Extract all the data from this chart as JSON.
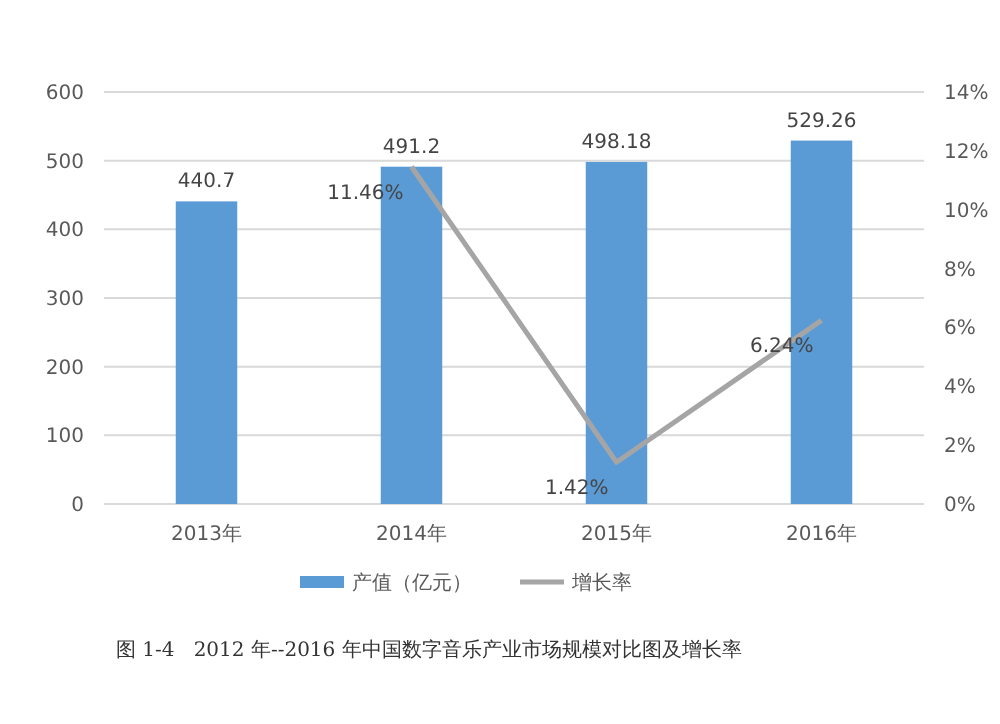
{
  "chart_data": {
    "type": "bar",
    "categories": [
      "2013年",
      "2014年",
      "2015年",
      "2016年"
    ],
    "series": [
      {
        "name": "产值（亿元）",
        "color": "#5b9bd5",
        "values": [
          440.7,
          491.2,
          498.18,
          529.26
        ],
        "value_labels": [
          "440.7",
          "491.2",
          "498.18",
          "529.26"
        ]
      },
      {
        "name": "增长率",
        "type": "line",
        "axis": "y2",
        "color": "#a5a5a5",
        "values": [
          null,
          11.46,
          1.42,
          6.24
        ],
        "value_labels": [
          null,
          "11.46%",
          "1.42%",
          "6.24%"
        ]
      }
    ],
    "ylim": [
      0,
      600
    ],
    "yticks": [
      0,
      100,
      200,
      300,
      400,
      500,
      600
    ],
    "y2lim": [
      0,
      14
    ],
    "y2ticks": [
      {
        "value": 0,
        "label": "0%"
      },
      {
        "value": 2,
        "label": "2%"
      },
      {
        "value": 4,
        "label": "4%"
      },
      {
        "value": 6,
        "label": "6%"
      },
      {
        "value": 8,
        "label": "8%"
      },
      {
        "value": 10,
        "label": "10%"
      },
      {
        "value": 12,
        "label": "12%"
      },
      {
        "value": 14,
        "label": "14%"
      }
    ],
    "grid": "y",
    "legend": "bottom",
    "annotations": [
      "图 1-4   2012 年--2016 年中国数字音乐产业市场规模对比图及增长率"
    ]
  }
}
